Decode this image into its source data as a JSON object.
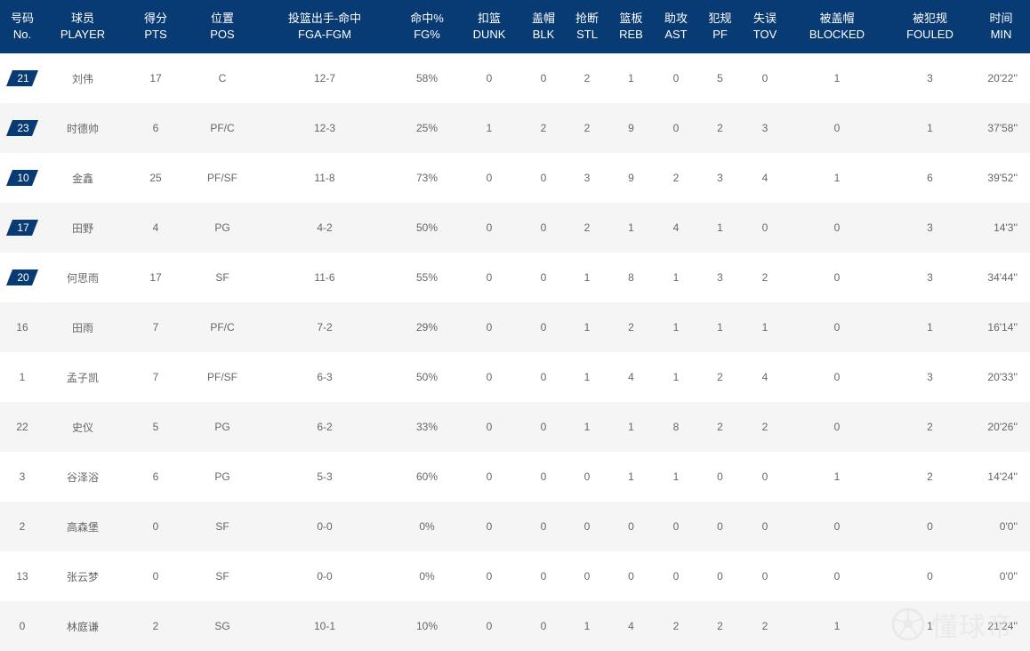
{
  "columns": [
    {
      "cn": "号码",
      "en": "No."
    },
    {
      "cn": "球员",
      "en": "PLAYER"
    },
    {
      "cn": "得分",
      "en": "PTS"
    },
    {
      "cn": "位置",
      "en": "POS"
    },
    {
      "cn": "投篮出手-命中",
      "en": "FGA-FGM"
    },
    {
      "cn": "命中%",
      "en": "FG%"
    },
    {
      "cn": "扣篮",
      "en": "DUNK"
    },
    {
      "cn": "盖帽",
      "en": "BLK"
    },
    {
      "cn": "抢断",
      "en": "STL"
    },
    {
      "cn": "篮板",
      "en": "REB"
    },
    {
      "cn": "助攻",
      "en": "AST"
    },
    {
      "cn": "犯规",
      "en": "PF"
    },
    {
      "cn": "失误",
      "en": "TOV"
    },
    {
      "cn": "被盖帽",
      "en": "BLOCKED"
    },
    {
      "cn": "被犯规",
      "en": "FOULED"
    },
    {
      "cn": "时间",
      "en": "MIN"
    }
  ],
  "rows": [
    {
      "no": "21",
      "starter": true,
      "player": "刘伟",
      "pts": "17",
      "pos": "C",
      "fga_fgm": "12-7",
      "fg_pct": "58%",
      "dunk": "0",
      "blk": "0",
      "stl": "2",
      "reb": "1",
      "ast": "0",
      "pf": "5",
      "tov": "0",
      "blocked": "1",
      "fouled": "3",
      "min": "20'22''"
    },
    {
      "no": "23",
      "starter": true,
      "player": "时德帅",
      "pts": "6",
      "pos": "PF/C",
      "fga_fgm": "12-3",
      "fg_pct": "25%",
      "dunk": "1",
      "blk": "2",
      "stl": "2",
      "reb": "9",
      "ast": "0",
      "pf": "2",
      "tov": "3",
      "blocked": "0",
      "fouled": "1",
      "min": "37'58''"
    },
    {
      "no": "10",
      "starter": true,
      "player": "金鑫",
      "pts": "25",
      "pos": "PF/SF",
      "fga_fgm": "11-8",
      "fg_pct": "73%",
      "dunk": "0",
      "blk": "0",
      "stl": "3",
      "reb": "9",
      "ast": "2",
      "pf": "3",
      "tov": "4",
      "blocked": "1",
      "fouled": "6",
      "min": "39'52''"
    },
    {
      "no": "17",
      "starter": true,
      "player": "田野",
      "pts": "4",
      "pos": "PG",
      "fga_fgm": "4-2",
      "fg_pct": "50%",
      "dunk": "0",
      "blk": "0",
      "stl": "2",
      "reb": "1",
      "ast": "4",
      "pf": "1",
      "tov": "0",
      "blocked": "0",
      "fouled": "3",
      "min": "14'3''"
    },
    {
      "no": "20",
      "starter": true,
      "player": "何思雨",
      "pts": "17",
      "pos": "SF",
      "fga_fgm": "11-6",
      "fg_pct": "55%",
      "dunk": "0",
      "blk": "0",
      "stl": "1",
      "reb": "8",
      "ast": "1",
      "pf": "3",
      "tov": "2",
      "blocked": "0",
      "fouled": "3",
      "min": "34'44''"
    },
    {
      "no": "16",
      "starter": false,
      "player": "田雨",
      "pts": "7",
      "pos": "PF/C",
      "fga_fgm": "7-2",
      "fg_pct": "29%",
      "dunk": "0",
      "blk": "0",
      "stl": "1",
      "reb": "2",
      "ast": "1",
      "pf": "1",
      "tov": "1",
      "blocked": "0",
      "fouled": "1",
      "min": "16'14''"
    },
    {
      "no": "1",
      "starter": false,
      "player": "孟子凯",
      "pts": "7",
      "pos": "PF/SF",
      "fga_fgm": "6-3",
      "fg_pct": "50%",
      "dunk": "0",
      "blk": "0",
      "stl": "1",
      "reb": "4",
      "ast": "1",
      "pf": "2",
      "tov": "4",
      "blocked": "0",
      "fouled": "3",
      "min": "20'33''"
    },
    {
      "no": "22",
      "starter": false,
      "player": "史仪",
      "pts": "5",
      "pos": "PG",
      "fga_fgm": "6-2",
      "fg_pct": "33%",
      "dunk": "0",
      "blk": "0",
      "stl": "1",
      "reb": "1",
      "ast": "8",
      "pf": "2",
      "tov": "2",
      "blocked": "0",
      "fouled": "2",
      "min": "20'26''"
    },
    {
      "no": "3",
      "starter": false,
      "player": "谷泽浴",
      "pts": "6",
      "pos": "PG",
      "fga_fgm": "5-3",
      "fg_pct": "60%",
      "dunk": "0",
      "blk": "0",
      "stl": "0",
      "reb": "1",
      "ast": "1",
      "pf": "0",
      "tov": "0",
      "blocked": "1",
      "fouled": "2",
      "min": "14'24''"
    },
    {
      "no": "2",
      "starter": false,
      "player": "高森堡",
      "pts": "0",
      "pos": "SF",
      "fga_fgm": "0-0",
      "fg_pct": "0%",
      "dunk": "0",
      "blk": "0",
      "stl": "0",
      "reb": "0",
      "ast": "0",
      "pf": "0",
      "tov": "0",
      "blocked": "0",
      "fouled": "0",
      "min": "0'0''"
    },
    {
      "no": "13",
      "starter": false,
      "player": "张云梦",
      "pts": "0",
      "pos": "SF",
      "fga_fgm": "0-0",
      "fg_pct": "0%",
      "dunk": "0",
      "blk": "0",
      "stl": "0",
      "reb": "0",
      "ast": "0",
      "pf": "0",
      "tov": "0",
      "blocked": "0",
      "fouled": "0",
      "min": "0'0''"
    },
    {
      "no": "0",
      "starter": false,
      "player": "林庭谦",
      "pts": "2",
      "pos": "SG",
      "fga_fgm": "10-1",
      "fg_pct": "10%",
      "dunk": "0",
      "blk": "0",
      "stl": "1",
      "reb": "4",
      "ast": "2",
      "pf": "2",
      "tov": "2",
      "blocked": "1",
      "fouled": "1",
      "min": "21'24''"
    }
  ],
  "watermark": {
    "text": "懂球帝",
    "icon": "soccer-ball-icon"
  },
  "colors": {
    "header_bg": "#083a73",
    "badge_bg": "#083a73",
    "row_alt": "#f5f5f5",
    "text": "#666666"
  }
}
